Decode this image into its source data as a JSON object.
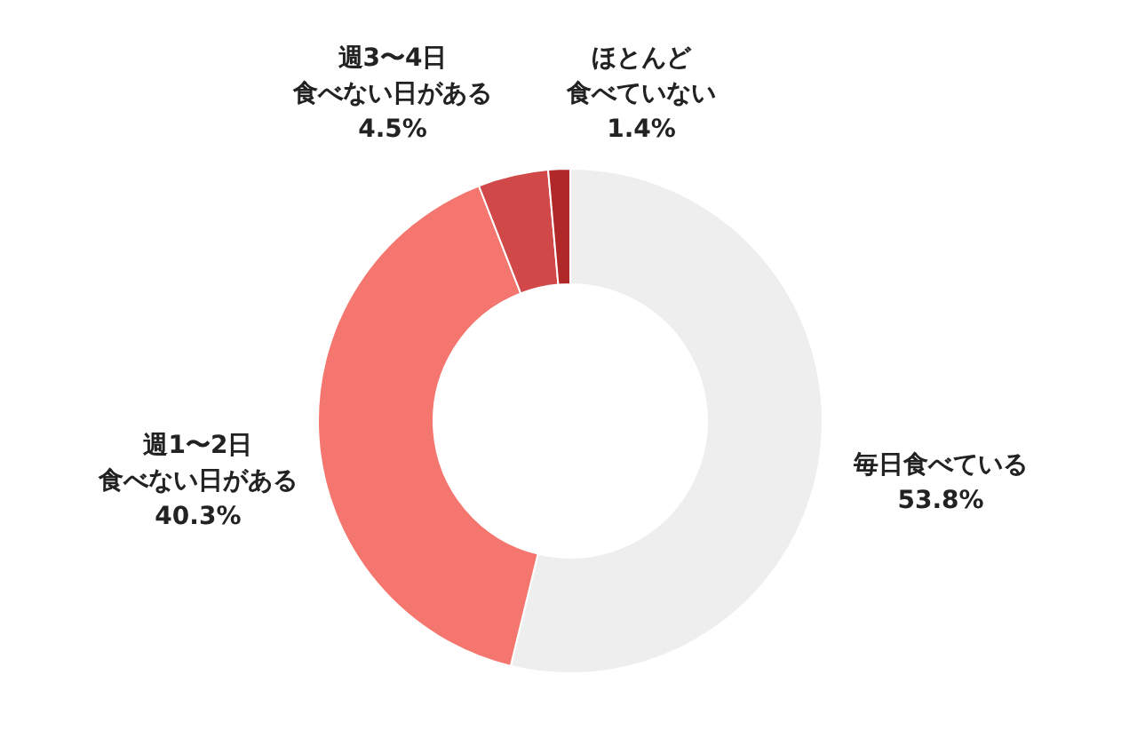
{
  "chart_data": {
    "type": "donut",
    "categories": [
      "毎日食べている",
      "週1〜2日食べない日がある",
      "週3〜4日食べない日がある",
      "ほとんど食べていない"
    ],
    "values": [
      53.8,
      40.3,
      4.5,
      1.4
    ],
    "colors": [
      "#eeeeee",
      "#f4766e",
      "#d04848",
      "#b02828"
    ],
    "value_labels": [
      "53.8%",
      "40.3%",
      "4.5%",
      "1.4%"
    ]
  }
}
